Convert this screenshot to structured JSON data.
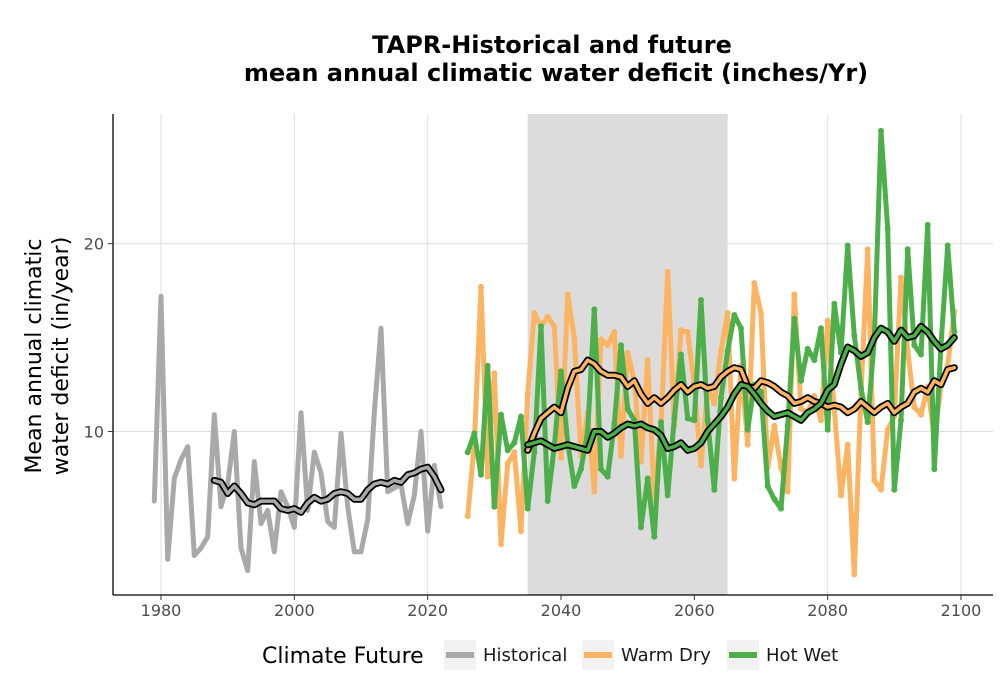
{
  "chart_data": {
    "type": "line",
    "title_line1": "TAPR-Historical and future",
    "title_line2": "mean annual climatic water deficit (inches/Yr)",
    "xlabel": "",
    "ylabel_line1": "Mean annual climatic",
    "ylabel_line2": "water deficit (in/year)",
    "xlim": [
      1972.8,
      2104.8
    ],
    "ylim": [
      1.3,
      26.9
    ],
    "x_ticks": [
      1980,
      2000,
      2020,
      2040,
      2060,
      2080,
      2100
    ],
    "x_tick_labels": [
      "1980",
      "2000",
      "2020",
      "2040",
      "2060",
      "2080",
      "2100"
    ],
    "y_ticks": [
      10,
      20
    ],
    "y_tick_labels": [
      "10",
      "20"
    ],
    "grid": true,
    "shaded_period": [
      2035,
      2065
    ],
    "legend": {
      "title": "Climate Future",
      "position": "bottom",
      "entries": [
        "Historical",
        "Warm Dry",
        "Hot Wet"
      ]
    },
    "colors": {
      "Historical": "#a9a9a9",
      "Warm Dry": "#fdb462",
      "Hot Wet": "#4daf4a",
      "smooth_outline": "#000000",
      "shade": "#dcdcdc"
    },
    "series": [
      {
        "name": "Historical",
        "x": [
          1979,
          1980,
          1981,
          1982,
          1983,
          1984,
          1985,
          1986,
          1987,
          1988,
          1989,
          1990,
          1991,
          1992,
          1993,
          1994,
          1995,
          1996,
          1997,
          1998,
          1999,
          2000,
          2001,
          2002,
          2003,
          2004,
          2005,
          2006,
          2007,
          2008,
          2009,
          2010,
          2011,
          2012,
          2013,
          2014,
          2015,
          2016,
          2017,
          2018,
          2019,
          2020,
          2021,
          2022
        ],
        "values": [
          6.3,
          17.2,
          3.2,
          7.5,
          8.5,
          9.2,
          3.4,
          3.8,
          4.4,
          10.9,
          6.0,
          7.2,
          10.0,
          3.8,
          2.6,
          8.4,
          5.1,
          5.8,
          3.6,
          6.8,
          6.0,
          4.9,
          11.0,
          5.8,
          8.9,
          7.8,
          5.2,
          4.9,
          9.9,
          6.0,
          3.6,
          3.6,
          5.3,
          11.0,
          15.5,
          6.8,
          7.0,
          7.2,
          5.1,
          6.6,
          10.0,
          4.7,
          8.2,
          6.0
        ]
      },
      {
        "name": "Warm Dry",
        "x": [
          2026,
          2027,
          2028,
          2029,
          2030,
          2031,
          2032,
          2033,
          2034,
          2035,
          2036,
          2037,
          2038,
          2039,
          2040,
          2041,
          2042,
          2043,
          2044,
          2045,
          2046,
          2047,
          2048,
          2049,
          2050,
          2051,
          2052,
          2053,
          2054,
          2055,
          2056,
          2057,
          2058,
          2059,
          2060,
          2061,
          2062,
          2063,
          2064,
          2065,
          2066,
          2067,
          2068,
          2069,
          2070,
          2071,
          2072,
          2073,
          2074,
          2075,
          2076,
          2077,
          2078,
          2079,
          2080,
          2081,
          2082,
          2083,
          2084,
          2085,
          2086,
          2087,
          2088,
          2089,
          2090,
          2091,
          2092,
          2093,
          2094,
          2095,
          2096,
          2097,
          2098,
          2099
        ],
        "values": [
          5.5,
          9.3,
          17.7,
          7.6,
          13.1,
          4.0,
          8.3,
          8.9,
          4.7,
          12.0,
          16.3,
          15.6,
          16.1,
          15.6,
          8.6,
          17.3,
          15.0,
          8.7,
          11.0,
          6.8,
          14.9,
          14.6,
          15.3,
          8.7,
          14.2,
          12.7,
          8.4,
          13.8,
          6.4,
          10.3,
          18.5,
          10.3,
          15.4,
          15.3,
          12.4,
          8.2,
          12.3,
          11.5,
          14.3,
          16.3,
          7.5,
          13.5,
          9.3,
          17.9,
          16.3,
          8.1,
          10.3,
          8.1,
          6.8,
          17.3,
          11.2,
          11.0,
          11.9,
          10.6,
          15.9,
          11.2,
          6.6,
          9.3,
          2.4,
          12.0,
          19.7,
          7.4,
          6.9,
          10.1,
          10.8,
          18.2,
          14.3,
          11.3,
          10.9,
          12.4,
          9.7,
          12.4,
          13.5,
          16.4
        ]
      },
      {
        "name": "Hot Wet",
        "x": [
          2026,
          2027,
          2028,
          2029,
          2030,
          2031,
          2032,
          2033,
          2034,
          2035,
          2036,
          2037,
          2038,
          2039,
          2040,
          2041,
          2042,
          2043,
          2044,
          2045,
          2046,
          2047,
          2048,
          2049,
          2050,
          2051,
          2052,
          2053,
          2054,
          2055,
          2056,
          2057,
          2058,
          2059,
          2060,
          2061,
          2062,
          2063,
          2064,
          2065,
          2066,
          2067,
          2068,
          2069,
          2070,
          2071,
          2072,
          2073,
          2074,
          2075,
          2076,
          2077,
          2078,
          2079,
          2080,
          2081,
          2082,
          2083,
          2084,
          2085,
          2086,
          2087,
          2088,
          2089,
          2090,
          2091,
          2092,
          2093,
          2094,
          2095,
          2096,
          2097,
          2098,
          2099
        ],
        "values": [
          8.9,
          9.9,
          7.7,
          13.5,
          6.0,
          10.9,
          9.0,
          9.4,
          10.8,
          5.9,
          8.9,
          15.6,
          6.3,
          9.2,
          13.2,
          9.4,
          7.1,
          8.0,
          10.0,
          16.5,
          8.0,
          7.6,
          10.4,
          14.6,
          11.2,
          10.6,
          4.9,
          7.5,
          4.4,
          10.5,
          6.6,
          10.7,
          14.1,
          10.7,
          10.6,
          17.0,
          10.6,
          6.9,
          11.8,
          14.3,
          16.2,
          15.5,
          10.1,
          12.5,
          12.1,
          7.1,
          6.4,
          5.9,
          10.3,
          16.0,
          12.7,
          14.4,
          13.8,
          15.5,
          10.1,
          16.8,
          14.2,
          19.9,
          15.1,
          12.3,
          10.5,
          14.9,
          26.0,
          20.8,
          6.9,
          10.6,
          19.7,
          14.6,
          14.1,
          21.0,
          8.0,
          14.6,
          19.9,
          15.3
        ]
      }
    ],
    "smoothed_series": [
      {
        "name": "Historical",
        "x": [
          1988,
          1989,
          1990,
          1991,
          1992,
          1993,
          1994,
          1995,
          1996,
          1997,
          1998,
          1999,
          2000,
          2001,
          2002,
          2003,
          2004,
          2005,
          2006,
          2007,
          2008,
          2009,
          2010,
          2011,
          2012,
          2013,
          2014,
          2015,
          2016,
          2017,
          2018,
          2019,
          2020,
          2021,
          2022
        ],
        "values": [
          7.4,
          7.3,
          6.7,
          7.1,
          6.7,
          6.2,
          6.1,
          6.3,
          6.3,
          6.3,
          5.9,
          5.8,
          5.9,
          5.7,
          6.2,
          6.5,
          6.3,
          6.4,
          6.7,
          6.8,
          6.7,
          6.4,
          6.4,
          6.9,
          7.2,
          7.3,
          7.2,
          7.4,
          7.3,
          7.7,
          7.8,
          8.0,
          8.1,
          7.6,
          6.9
        ]
      },
      {
        "name": "Warm Dry",
        "x": [
          2035,
          2036,
          2037,
          2038,
          2039,
          2040,
          2041,
          2042,
          2043,
          2044,
          2045,
          2046,
          2047,
          2048,
          2049,
          2050,
          2051,
          2052,
          2053,
          2054,
          2055,
          2056,
          2057,
          2058,
          2059,
          2060,
          2061,
          2062,
          2063,
          2064,
          2065,
          2066,
          2067,
          2068,
          2069,
          2070,
          2071,
          2072,
          2073,
          2074,
          2075,
          2076,
          2077,
          2078,
          2079,
          2080,
          2081,
          2082,
          2083,
          2084,
          2085,
          2086,
          2087,
          2088,
          2089,
          2090,
          2091,
          2092,
          2093,
          2094,
          2095,
          2096,
          2097,
          2098,
          2099
        ],
        "values": [
          9.0,
          9.9,
          10.7,
          11.0,
          11.3,
          11.0,
          12.3,
          13.2,
          13.3,
          13.8,
          13.6,
          13.2,
          13.0,
          13.0,
          12.9,
          12.4,
          12.7,
          12.0,
          11.5,
          11.8,
          11.5,
          11.8,
          12.2,
          12.5,
          12.1,
          12.4,
          12.5,
          12.3,
          12.4,
          12.9,
          13.2,
          13.4,
          13.3,
          12.4,
          12.3,
          12.7,
          12.6,
          12.4,
          12.1,
          11.9,
          11.5,
          11.6,
          11.8,
          11.6,
          11.5,
          11.3,
          11.4,
          11.3,
          11.0,
          11.2,
          11.6,
          11.3,
          11.0,
          11.3,
          11.5,
          11.0,
          11.3,
          11.5,
          12.1,
          12.3,
          12.1,
          12.7,
          12.5,
          13.3,
          13.4
        ]
      },
      {
        "name": "Hot Wet",
        "x": [
          2035,
          2036,
          2037,
          2038,
          2039,
          2040,
          2041,
          2042,
          2043,
          2044,
          2045,
          2046,
          2047,
          2048,
          2049,
          2050,
          2051,
          2052,
          2053,
          2054,
          2055,
          2056,
          2057,
          2058,
          2059,
          2060,
          2061,
          2062,
          2063,
          2064,
          2065,
          2066,
          2067,
          2068,
          2069,
          2070,
          2071,
          2072,
          2073,
          2074,
          2075,
          2076,
          2077,
          2078,
          2079,
          2080,
          2081,
          2082,
          2083,
          2084,
          2085,
          2086,
          2087,
          2088,
          2089,
          2090,
          2091,
          2092,
          2093,
          2094,
          2095,
          2096,
          2097,
          2098,
          2099
        ],
        "values": [
          9.3,
          9.4,
          9.5,
          9.3,
          9.1,
          9.2,
          9.3,
          9.2,
          9.1,
          9.0,
          10.0,
          10.0,
          9.7,
          9.9,
          10.2,
          10.4,
          10.3,
          10.4,
          10.2,
          10.1,
          9.8,
          9.1,
          9.2,
          9.4,
          9.0,
          9.1,
          9.4,
          10.0,
          10.4,
          10.8,
          11.3,
          12.0,
          12.5,
          12.4,
          12.0,
          11.5,
          11.1,
          10.8,
          10.9,
          11.0,
          10.8,
          10.6,
          11.0,
          11.2,
          11.5,
          12.2,
          12.5,
          13.6,
          14.5,
          14.3,
          14.0,
          14.2,
          15.0,
          15.5,
          15.3,
          14.8,
          15.4,
          15.0,
          15.1,
          15.6,
          15.3,
          14.8,
          14.4,
          14.6,
          15.0
        ]
      }
    ]
  }
}
